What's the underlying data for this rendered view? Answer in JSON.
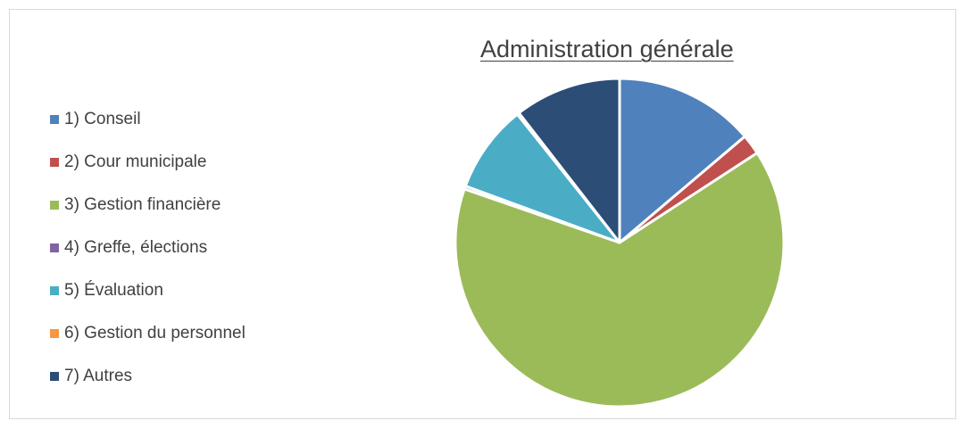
{
  "chart_data": {
    "type": "pie",
    "title": "Administration générale",
    "legend_position": "left",
    "slices": [
      {
        "label": "1) Conseil",
        "value": 13.8,
        "color": "#4f81bd"
      },
      {
        "label": "2) Cour municipale",
        "value": 2.0,
        "color": "#c0504d"
      },
      {
        "label": "3) Gestion financière",
        "value": 64.5,
        "color": "#9bbb59"
      },
      {
        "label": "4) Greffe, élections",
        "value": 0.3,
        "color": "#8064a2"
      },
      {
        "label": "5) Évaluation",
        "value": 8.7,
        "color": "#4bacc6"
      },
      {
        "label": "6) Gestion du personnel",
        "value": 0.2,
        "color": "#f79646"
      },
      {
        "label": "7) Autres",
        "value": 10.5,
        "color": "#2c4d75"
      }
    ]
  }
}
